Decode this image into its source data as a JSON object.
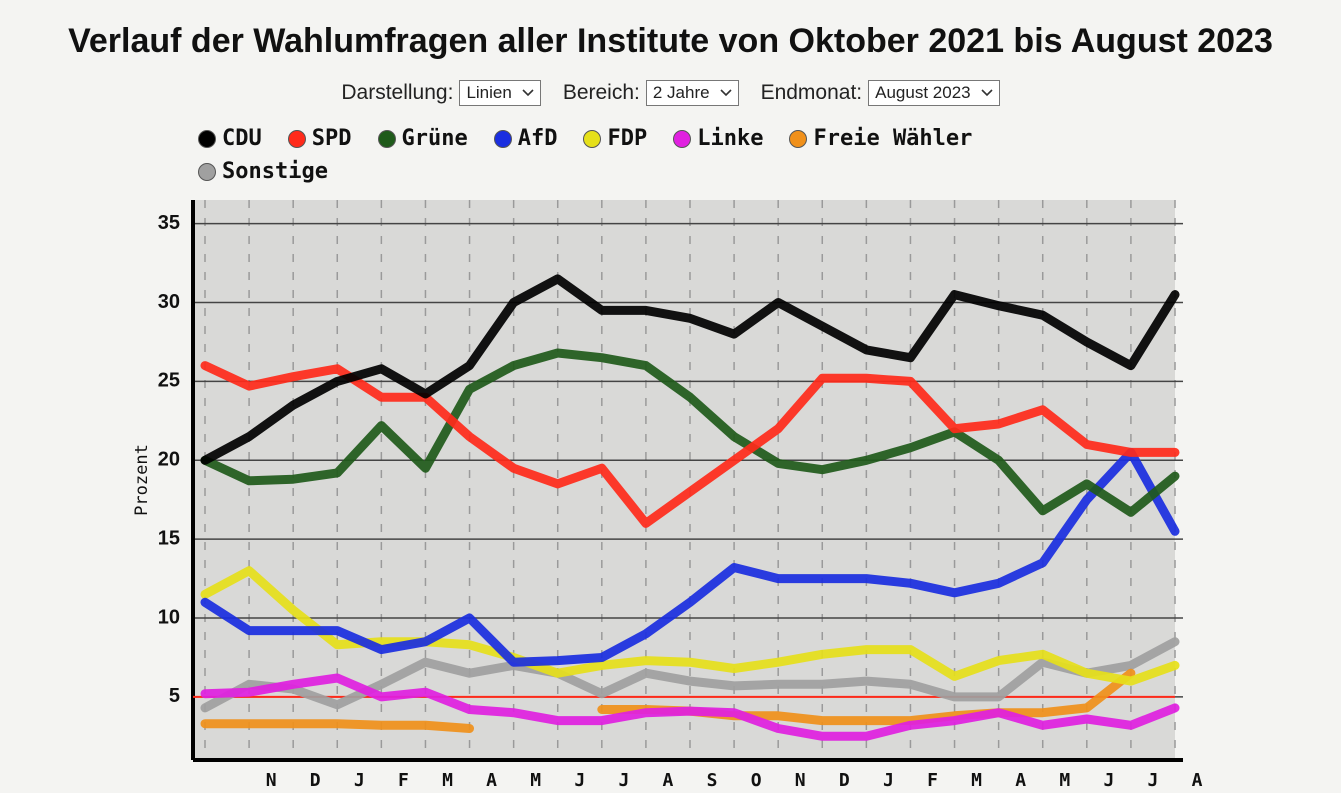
{
  "chart_data": {
    "type": "line",
    "title": "Verlauf der Wahlumfragen aller Institute von Oktober 2021 bis August 2023",
    "controls": [
      {
        "label": "Darstellung:",
        "value": "Linien"
      },
      {
        "label": "Bereich:",
        "value": "2 Jahre"
      },
      {
        "label": "Endmonat:",
        "value": "August 2023"
      }
    ],
    "ylabel": "Prozent",
    "categories": [
      null,
      "N",
      "D",
      "J",
      "F",
      "M",
      "A",
      "M",
      "J",
      "J",
      "A",
      "S",
      "O",
      "N",
      "D",
      "J",
      "F",
      "M",
      "A",
      "M",
      "J",
      "J",
      "A"
    ],
    "ylim": [
      1,
      36.5
    ],
    "yticks": [
      5,
      10,
      15,
      20,
      25,
      30,
      35
    ],
    "grid": true,
    "reference_line": {
      "value": 5,
      "color": "#ff2a1a"
    },
    "series": [
      {
        "name": "CDU",
        "color": "#000000",
        "values": [
          20,
          21.5,
          23.5,
          25,
          25.8,
          24.2,
          26,
          30,
          31.5,
          29.5,
          29.5,
          29,
          28,
          30,
          28.5,
          27,
          26.5,
          30.5,
          29.8,
          29.2,
          27.5,
          26,
          30.5
        ]
      },
      {
        "name": "SPD",
        "color": "#ff2a1a",
        "values": [
          26,
          24.7,
          25.3,
          25.8,
          24,
          24,
          21.5,
          19.5,
          18.5,
          19.5,
          16,
          18,
          20,
          22,
          25.2,
          25.2,
          25,
          22,
          22.3,
          23.2,
          21,
          20.5,
          20.5
        ]
      },
      {
        "name": "Grüne",
        "color": "#1f5a1a",
        "values": [
          20,
          18.7,
          18.8,
          19.2,
          22.2,
          19.5,
          24.5,
          26,
          26.8,
          26.5,
          26,
          24,
          21.5,
          19.8,
          19.4,
          20,
          20.8,
          21.8,
          20,
          16.8,
          18.5,
          16.7,
          19
        ]
      },
      {
        "name": "AfD",
        "color": "#1a2ee0",
        "values": [
          11,
          9.2,
          9.2,
          9.2,
          8,
          8.5,
          10,
          7.2,
          7.3,
          7.5,
          9,
          11,
          13.2,
          12.5,
          12.5,
          12.5,
          12.2,
          11.6,
          12.2,
          13.5,
          17.5,
          20.5,
          15.5
        ]
      },
      {
        "name": "FDP",
        "color": "#e6e01a",
        "values": [
          11.5,
          13,
          10.5,
          8.3,
          8.5,
          8.5,
          8.3,
          7.5,
          6.5,
          7,
          7.3,
          7.2,
          6.8,
          7.2,
          7.7,
          8,
          8,
          6.3,
          7.3,
          7.7,
          6.5,
          6,
          7
        ]
      },
      {
        "name": "Linke",
        "color": "#e020e0",
        "values": [
          5.2,
          5.3,
          5.8,
          6.2,
          5,
          5.3,
          4.2,
          4,
          3.5,
          3.5,
          4,
          4.1,
          4,
          3,
          2.5,
          2.5,
          3.2,
          3.5,
          4,
          3.2,
          3.6,
          3.2,
          4.3
        ]
      },
      {
        "name": "Freie Wähler",
        "color": "#f0901a",
        "values": [
          3.3,
          3.3,
          3.3,
          3.3,
          3.2,
          3.2,
          3,
          null,
          null,
          4.2,
          4.2,
          4.1,
          3.8,
          3.8,
          3.5,
          3.5,
          3.5,
          3.8,
          4,
          4,
          4.3,
          6.5,
          null
        ]
      },
      {
        "name": "Sonstige",
        "color": "#a0a0a0",
        "values": [
          4.3,
          5.8,
          5.5,
          4.5,
          5.8,
          7.2,
          6.5,
          7,
          6.5,
          5.2,
          6.5,
          6,
          5.7,
          5.8,
          5.8,
          6,
          5.8,
          5,
          5,
          7.2,
          6.5,
          7,
          8.5
        ]
      }
    ]
  }
}
